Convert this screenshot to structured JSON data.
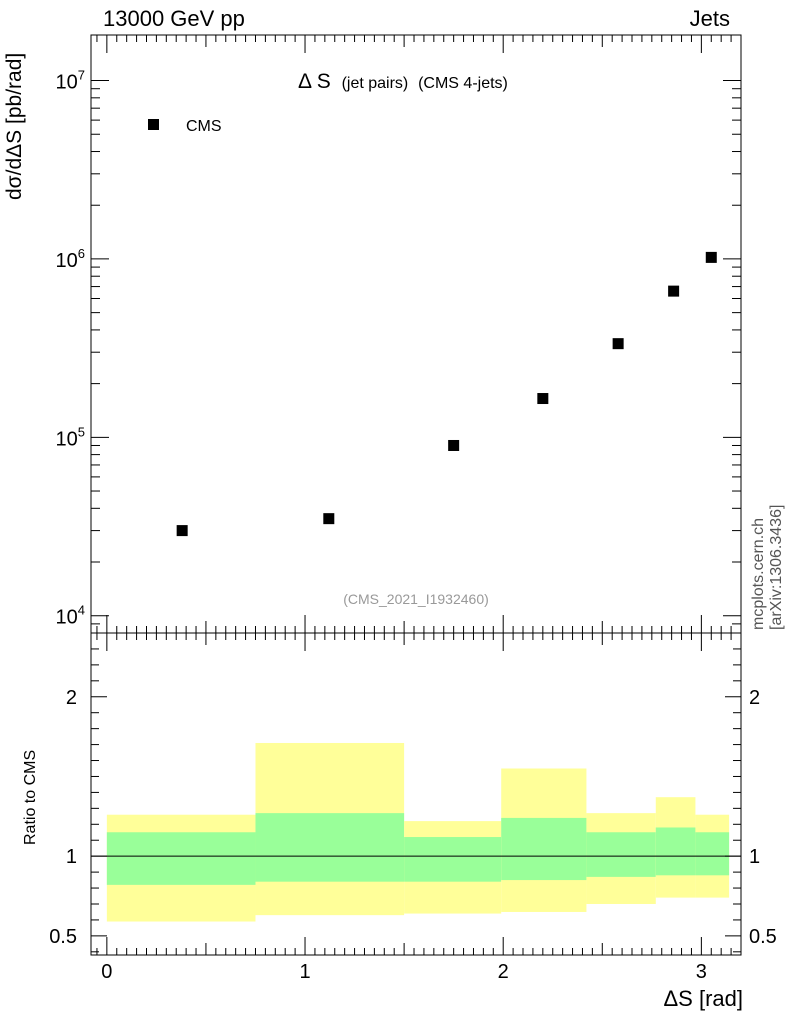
{
  "header": {
    "process": "13000 GeV pp",
    "category": "Jets"
  },
  "side_credit": "mcplots.cern.ch [arXiv:1306.3436]",
  "chart_data": [
    {
      "type": "scatter",
      "panel": "main",
      "title": "Δ S (jet pairs) (CMS 4-jets)",
      "title_main": "Δ S",
      "title_paren1": "(jet pairs)",
      "title_paren2": "(CMS 4-jets)",
      "ylabel": "dσ/dΔS [pb/rad]",
      "yscale": "log",
      "ylim": [
        8000,
        18000000
      ],
      "xlim": [
        -0.08,
        3.2
      ],
      "y_ticks": [
        10000,
        100000,
        1000000,
        10000000
      ],
      "y_tick_labels": [
        {
          "base": "10",
          "exp": "4"
        },
        {
          "base": "10",
          "exp": "5"
        },
        {
          "base": "10",
          "exp": "6"
        },
        {
          "base": "10",
          "exp": "7"
        }
      ],
      "analysis_id": "(CMS_2021_I1932460)",
      "legend": {
        "position": "top-left",
        "entries": [
          "CMS"
        ]
      },
      "series": [
        {
          "name": "CMS",
          "color": "#000000",
          "x": [
            0.38,
            1.12,
            1.75,
            2.2,
            2.58,
            2.86,
            3.05
          ],
          "y": [
            30000,
            35000,
            90000,
            165000,
            335000,
            660000,
            1020000
          ]
        }
      ]
    },
    {
      "type": "area",
      "panel": "ratio",
      "ylabel": "Ratio to CMS",
      "xlabel": "ΔS [rad]",
      "ylim": [
        0.38,
        2.4
      ],
      "xlim": [
        -0.08,
        3.2
      ],
      "x_ticks": [
        0,
        1,
        2,
        3
      ],
      "x_tick_labels": [
        "0",
        "1",
        "2",
        "3"
      ],
      "y_ticks": [
        0.5,
        1,
        2
      ],
      "y_tick_labels": [
        "0.5",
        "1",
        "2"
      ],
      "reference_line": 1,
      "band_colors": {
        "outer": "#ffff99",
        "inner": "#99ff99"
      },
      "bins": [
        {
          "x0": 0.0,
          "x1": 0.75,
          "outer_lo": 0.59,
          "outer_hi": 1.26,
          "inner_lo": 0.82,
          "inner_hi": 1.15
        },
        {
          "x0": 0.75,
          "x1": 1.5,
          "outer_lo": 0.63,
          "outer_hi": 1.71,
          "inner_lo": 0.84,
          "inner_hi": 1.27
        },
        {
          "x0": 1.5,
          "x1": 1.99,
          "outer_lo": 0.64,
          "outer_hi": 1.22,
          "inner_lo": 0.84,
          "inner_hi": 1.12
        },
        {
          "x0": 1.99,
          "x1": 2.42,
          "outer_lo": 0.65,
          "outer_hi": 1.55,
          "inner_lo": 0.85,
          "inner_hi": 1.24
        },
        {
          "x0": 2.42,
          "x1": 2.77,
          "outer_lo": 0.7,
          "outer_hi": 1.27,
          "inner_lo": 0.87,
          "inner_hi": 1.15
        },
        {
          "x0": 2.77,
          "x1": 2.97,
          "outer_lo": 0.74,
          "outer_hi": 1.37,
          "inner_lo": 0.88,
          "inner_hi": 1.18
        },
        {
          "x0": 2.97,
          "x1": 3.14,
          "outer_lo": 0.74,
          "outer_hi": 1.26,
          "inner_lo": 0.88,
          "inner_hi": 1.15
        }
      ]
    }
  ]
}
